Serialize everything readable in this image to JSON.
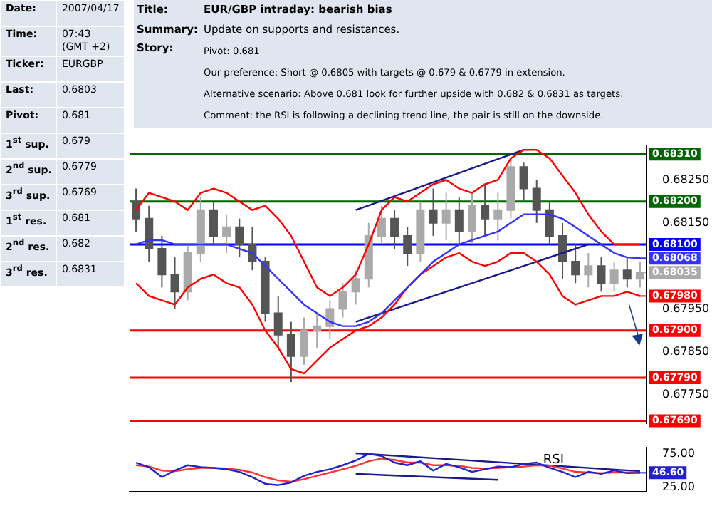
{
  "chart_data": [
    {
      "type": "other",
      "annotations": [
        "Date:",
        "2007/04/17",
        "Time:",
        "07:43 (GMT +2)",
        "Ticker:",
        "EURGBP",
        "Last:",
        "0.6803",
        "Pivot:",
        "0.681",
        "1$^{st}$ sup.",
        "0.679",
        "2$^{nd}$ sup.",
        "0.6779",
        "3$^{rd}$ sup.",
        "0.6769",
        "1$^{st}$ res.",
        "0.681",
        "2$^{nd}$ res.",
        "0.682",
        "3$^{rd}$ res.",
        "0.6831",
        "Title:",
        "EUR/GBP intraday: bearish bias",
        "Summary:",
        "Update on supports and resistances.",
        "Story:",
        "Pivot: 0.681",
        "Our preference: Short @ 0.6805 with targets @ 0.679 & 0.6779 in extension.",
        "Alternative scenario: Above 0.681 look for further upside with 0.682 & 0.6831 as targets.",
        "Comment: the RSI is following a declining trend line, the pair is still on the downside."
      ]
    },
    {
      "type": "candlestick",
      "categories": [
        null,
        null,
        null,
        null,
        null,
        null,
        null,
        null,
        null,
        null,
        null,
        null,
        null,
        null,
        null,
        null,
        null,
        null,
        null,
        null,
        null,
        null,
        null,
        null,
        null,
        null,
        null,
        null,
        null,
        null,
        null,
        null,
        null,
        null,
        null,
        null,
        null,
        null,
        null,
        null
      ],
      "ohlc": [
        [
          0.682,
          0.6823,
          0.6813,
          0.6816
        ],
        [
          0.6816,
          0.6819,
          0.6806,
          0.6809
        ],
        [
          0.6809,
          0.6812,
          0.68,
          0.6803
        ],
        [
          0.6803,
          0.6807,
          0.6795,
          0.6799
        ],
        [
          0.6799,
          0.681,
          0.6797,
          0.6808
        ],
        [
          0.6808,
          0.6821,
          0.6806,
          0.6818
        ],
        [
          0.6818,
          0.682,
          0.681,
          0.6812
        ],
        [
          0.6812,
          0.6817,
          0.6808,
          0.6814
        ],
        [
          0.6814,
          0.6816,
          0.6807,
          0.681
        ],
        [
          0.681,
          0.6814,
          0.6804,
          0.6806
        ],
        [
          0.6806,
          0.6807,
          0.6792,
          0.6794
        ],
        [
          0.6794,
          0.6798,
          0.6786,
          0.6789
        ],
        [
          0.6789,
          0.6792,
          0.6778,
          0.6784
        ],
        [
          0.6784,
          0.6793,
          0.6782,
          0.679
        ],
        [
          0.679,
          0.6794,
          0.6786,
          0.6791
        ],
        [
          0.6791,
          0.6797,
          0.6788,
          0.6795
        ],
        [
          0.6795,
          0.6801,
          0.6793,
          0.6799
        ],
        [
          0.6799,
          0.6804,
          0.6796,
          0.6802
        ],
        [
          0.6802,
          0.6815,
          0.68,
          0.6812
        ],
        [
          0.6812,
          0.6819,
          0.681,
          0.6816
        ],
        [
          0.6816,
          0.6818,
          0.6809,
          0.6812
        ],
        [
          0.6812,
          0.6814,
          0.6805,
          0.6808
        ],
        [
          0.6808,
          0.682,
          0.6806,
          0.6818
        ],
        [
          0.6818,
          0.6823,
          0.6812,
          0.6815
        ],
        [
          0.6815,
          0.6822,
          0.6811,
          0.6818
        ],
        [
          0.6818,
          0.6821,
          0.681,
          0.6813
        ],
        [
          0.6813,
          0.6822,
          0.681,
          0.6819
        ],
        [
          0.6819,
          0.6824,
          0.6812,
          0.6816
        ],
        [
          0.6816,
          0.6822,
          0.6811,
          0.6818
        ],
        [
          0.6818,
          0.683,
          0.6816,
          0.6828
        ],
        [
          0.6828,
          0.6829,
          0.682,
          0.6823
        ],
        [
          0.6823,
          0.6825,
          0.6815,
          0.6818
        ],
        [
          0.6818,
          0.682,
          0.681,
          0.6812
        ],
        [
          0.6812,
          0.6815,
          0.6802,
          0.6806
        ],
        [
          0.6806,
          0.681,
          0.6801,
          0.6803
        ],
        [
          0.6803,
          0.6808,
          0.68,
          0.6805
        ],
        [
          0.6805,
          0.6807,
          0.6799,
          0.6801
        ],
        [
          0.6801,
          0.6806,
          0.6799,
          0.6804
        ],
        [
          0.6804,
          0.6807,
          0.68,
          0.6802
        ],
        [
          0.6802,
          0.6806,
          0.68,
          0.68035
        ]
      ],
      "value_labels": [
        null,
        null,
        null,
        null,
        null,
        null,
        null,
        null,
        null,
        null,
        null,
        null,
        null,
        null,
        null,
        null,
        null,
        null,
        null,
        null,
        null,
        null,
        null,
        null,
        null,
        null,
        null,
        null,
        null,
        null,
        null,
        null,
        null,
        null,
        null,
        null,
        null,
        null,
        null,
        "0.68035"
      ],
      "series": [
        {
          "type": "line",
          "color": "#3333ff",
          "values": [
            0.681,
            0.6811,
            0.6811,
            0.681,
            0.681,
            0.681,
            0.681,
            0.681,
            0.6809,
            0.6808,
            0.6805,
            0.6802,
            0.6799,
            0.6796,
            0.6794,
            0.6792,
            0.6791,
            0.6791,
            0.6792,
            0.6794,
            0.6797,
            0.68,
            0.6803,
            0.6806,
            0.6808,
            0.681,
            0.6811,
            0.6812,
            0.6813,
            0.6815,
            0.6817,
            0.6817,
            0.6817,
            0.6816,
            0.6814,
            0.6812,
            0.681,
            0.6808,
            0.6807,
            0.68068
          ],
          "value_labels": [
            null,
            null,
            null,
            null,
            null,
            null,
            null,
            null,
            null,
            null,
            null,
            null,
            null,
            null,
            null,
            null,
            null,
            null,
            null,
            null,
            null,
            null,
            null,
            null,
            null,
            null,
            null,
            null,
            null,
            null,
            null,
            null,
            null,
            null,
            null,
            null,
            null,
            null,
            null,
            "0.68068"
          ]
        },
        {
          "type": "line",
          "color": "#ff0000",
          "values": [
            0.6818,
            0.6822,
            0.6821,
            0.682,
            0.6818,
            0.6822,
            0.6823,
            0.6822,
            0.682,
            0.6818,
            0.6819,
            0.6816,
            0.6812,
            0.6806,
            0.68,
            0.6798,
            0.68,
            0.6803,
            0.681,
            0.6818,
            0.6821,
            0.682,
            0.6822,
            0.6824,
            0.6825,
            0.6823,
            0.6822,
            0.6824,
            0.6825,
            0.683,
            0.6832,
            0.6832,
            0.683,
            0.6826,
            0.6822,
            0.6817,
            0.6813,
            0.681,
            0.681,
            0.681
          ]
        },
        {
          "type": "line",
          "color": "#ff0000",
          "values": [
            0.6801,
            0.6798,
            0.6797,
            0.6796,
            0.68,
            0.6802,
            0.6803,
            0.6801,
            0.68,
            0.6796,
            0.679,
            0.6786,
            0.6781,
            0.678,
            0.6783,
            0.6786,
            0.6788,
            0.679,
            0.6791,
            0.6793,
            0.6796,
            0.68,
            0.6803,
            0.6805,
            0.6807,
            0.6808,
            0.6806,
            0.6805,
            0.6806,
            0.6808,
            0.6808,
            0.6806,
            0.6803,
            0.6798,
            0.6796,
            0.6797,
            0.6798,
            0.6798,
            0.6799,
            0.6798
          ],
          "value_labels": [
            null,
            null,
            null,
            null,
            null,
            null,
            null,
            null,
            null,
            null,
            null,
            null,
            null,
            null,
            null,
            null,
            null,
            null,
            null,
            null,
            null,
            null,
            null,
            null,
            null,
            null,
            null,
            null,
            null,
            null,
            null,
            null,
            null,
            null,
            null,
            null,
            null,
            null,
            null,
            "0.67980"
          ]
        },
        {
          "type": "line",
          "color": "#1a1a8c",
          "values": [
            null,
            null,
            null,
            null,
            null,
            null,
            null,
            null,
            null,
            null,
            null,
            null,
            null,
            null,
            null,
            null,
            null,
            0.6818,
            null,
            null,
            null,
            null,
            null,
            null,
            null,
            null,
            null,
            null,
            null,
            null,
            0.6832,
            null,
            null,
            null,
            null,
            null,
            null,
            null,
            null,
            null
          ]
        },
        {
          "type": "line",
          "color": "#1a1a8c",
          "values": [
            null,
            null,
            null,
            null,
            null,
            null,
            null,
            null,
            null,
            null,
            null,
            null,
            null,
            null,
            null,
            null,
            null,
            0.6792,
            null,
            null,
            null,
            null,
            null,
            null,
            null,
            null,
            null,
            null,
            null,
            null,
            null,
            null,
            null,
            null,
            null,
            0.681,
            null,
            null,
            null,
            null
          ]
        }
      ],
      "ylim": [
        0.67684,
        0.68331
      ],
      "yticks": [
        {
          "value": 0.6775,
          "label": "0.67750"
        },
        {
          "value": 0.6785,
          "label": "0.67850"
        },
        {
          "value": 0.6795,
          "label": "0.67950"
        },
        {
          "value": 0.6815,
          "label": "0.68150"
        },
        {
          "value": 0.6825,
          "label": "0.68250"
        }
      ],
      "ref_lines": [
        {
          "axis": "y",
          "value": 0.6831,
          "label": "0.68310",
          "color": "#006600"
        },
        {
          "axis": "y",
          "value": 0.682,
          "label": "0.68200",
          "color": "#006600"
        },
        {
          "axis": "y",
          "value": 0.681,
          "label": "0.68100",
          "color": "#0000ff"
        },
        {
          "axis": "y",
          "value": 0.679,
          "label": "0.67900",
          "color": "#ff0000"
        },
        {
          "axis": "y",
          "value": 0.6779,
          "label": "0.67790",
          "color": "#ff0000"
        },
        {
          "axis": "y",
          "value": 0.6769,
          "label": "0.67690",
          "color": "#ff0000"
        }
      ],
      "colors": [
        "#555555",
        "#555555",
        "#555555",
        "#555555",
        "#aaaaaa",
        "#aaaaaa",
        "#555555",
        "#aaaaaa",
        "#555555",
        "#555555",
        "#555555",
        "#555555",
        "#555555",
        "#aaaaaa",
        "#aaaaaa",
        "#aaaaaa",
        "#aaaaaa",
        "#aaaaaa",
        "#aaaaaa",
        "#aaaaaa",
        "#555555",
        "#555555",
        "#aaaaaa",
        "#555555",
        "#aaaaaa",
        "#555555",
        "#aaaaaa",
        "#555555",
        "#aaaaaa",
        "#aaaaaa",
        "#555555",
        "#555555",
        "#555555",
        "#555555",
        "#555555",
        "#aaaaaa",
        "#555555",
        "#aaaaaa",
        "#555555",
        "#aaaaaa"
      ]
    },
    {
      "type": "line",
      "categories": [
        null,
        null,
        null,
        null,
        null,
        null,
        null,
        null,
        null,
        null,
        null,
        null,
        null,
        null,
        null,
        null,
        null,
        null,
        null,
        null,
        null,
        null,
        null,
        null,
        null,
        null,
        null,
        null,
        null,
        null,
        null,
        null,
        null,
        null,
        null,
        null,
        null,
        null,
        null,
        null
      ],
      "series": [
        {
          "color": "#2222cc",
          "values": [
            62,
            55,
            40,
            50,
            58,
            55,
            54,
            52,
            48,
            40,
            30,
            28,
            32,
            42,
            48,
            52,
            58,
            65,
            75,
            72,
            62,
            58,
            64,
            50,
            60,
            55,
            48,
            52,
            56,
            55,
            60,
            62,
            54,
            48,
            40,
            48,
            45,
            50,
            46,
            46.6
          ],
          "value_labels": [
            null,
            null,
            null,
            null,
            null,
            null,
            null,
            null,
            null,
            null,
            null,
            null,
            null,
            null,
            null,
            null,
            null,
            null,
            null,
            null,
            null,
            null,
            null,
            null,
            null,
            null,
            null,
            null,
            null,
            null,
            null,
            null,
            null,
            null,
            null,
            null,
            null,
            null,
            null,
            "46.60"
          ]
        },
        {
          "color": "#ff3333",
          "values": [
            58,
            56,
            50,
            49,
            52,
            54,
            54,
            53,
            51,
            47,
            40,
            35,
            33,
            37,
            42,
            47,
            52,
            57,
            64,
            68,
            66,
            62,
            62,
            58,
            58,
            57,
            54,
            53,
            54,
            55,
            56,
            58,
            57,
            53,
            48,
            47,
            46,
            47,
            47,
            47
          ]
        },
        {
          "color": "#1a1a8c",
          "values": [
            null,
            null,
            null,
            null,
            null,
            null,
            null,
            null,
            null,
            null,
            null,
            null,
            null,
            null,
            null,
            null,
            null,
            76,
            null,
            null,
            null,
            null,
            null,
            null,
            null,
            null,
            null,
            null,
            null,
            null,
            null,
            null,
            null,
            null,
            null,
            null,
            null,
            null,
            null,
            49
          ]
        },
        {
          "color": "#1a1a8c",
          "values": [
            null,
            null,
            null,
            null,
            null,
            null,
            null,
            null,
            null,
            null,
            null,
            null,
            null,
            null,
            null,
            null,
            null,
            45,
            null,
            null,
            null,
            null,
            null,
            null,
            null,
            null,
            null,
            null,
            36,
            null,
            null,
            null,
            null,
            null,
            null,
            null,
            null,
            null,
            null,
            null
          ]
        }
      ],
      "ylim": [
        18,
        85
      ],
      "yticks": [
        {
          "value": 25,
          "label": "25.00"
        },
        {
          "value": 75,
          "label": "75.00"
        }
      ],
      "annotations": [
        "RSI"
      ]
    }
  ]
}
